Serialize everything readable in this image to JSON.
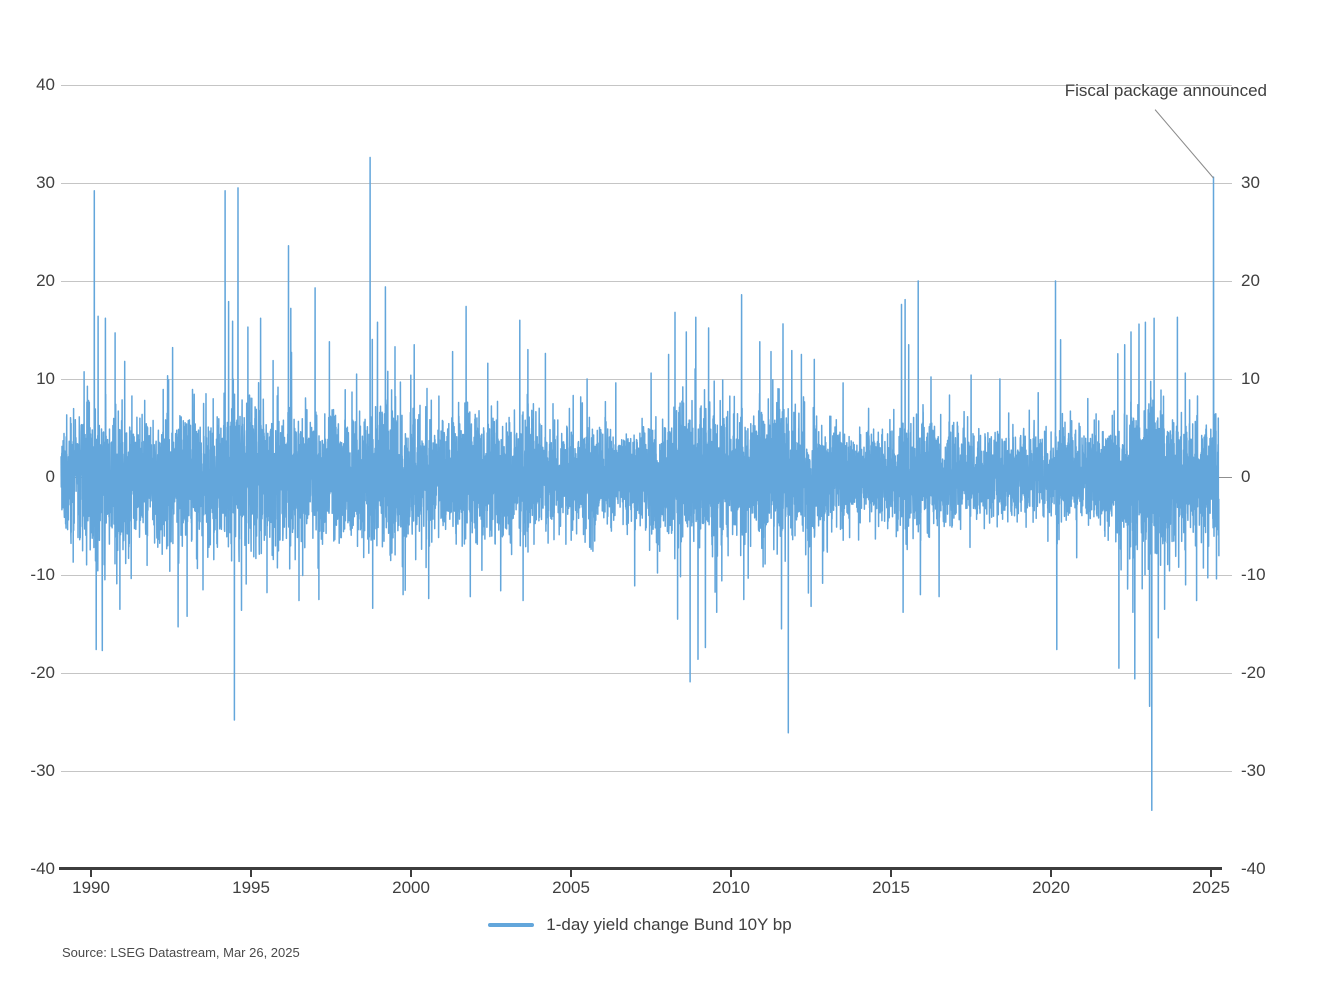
{
  "page": {
    "background": "#ffffff"
  },
  "colors": {
    "series": "#63a6db",
    "gridline": "#c5c5c5",
    "zero_line": "#8f8f8f",
    "axis": "#3d3d3d",
    "text": "#3f3f3f",
    "leader_line": "#8a8a8a",
    "source_text": "#4a4a4a"
  },
  "chart_data": {
    "type": "line",
    "title": "",
    "xlabel": "",
    "ylabel": "",
    "x_range": [
      1989.06,
      2025.25
    ],
    "ylim": [
      -40,
      40
    ],
    "x_ticks": [
      "1990",
      "1995",
      "2000",
      "2005",
      "2010",
      "2015",
      "2020",
      "2025"
    ],
    "x_tick_years": [
      1990,
      1995,
      2000,
      2005,
      2010,
      2015,
      2020,
      2025
    ],
    "y_ticks_left": [
      40,
      30,
      20,
      10,
      0,
      -10,
      -20,
      -30,
      -40
    ],
    "y_ticks_right": [
      30,
      20,
      10,
      0,
      -10,
      -20,
      -30,
      -40
    ],
    "grid": "horizontal gridlines on",
    "legend_position": "bottom-center",
    "series": [
      {
        "name": "1-day yield change Bund 10Y bp",
        "color": "#63a6db",
        "sampling": "daily (weekdays)",
        "points_per_year": 261
      }
    ],
    "annotation": {
      "text": "Fiscal package announced",
      "x": 2025.08,
      "y": 30.6
    },
    "generator": {
      "seed": 20250326,
      "tail_prob": 0.012,
      "tail_scale": [
        1.6,
        2.5
      ],
      "clip_sigma": 4.6
    },
    "volatility_envelope": [
      [
        1989.06,
        2.6
      ],
      [
        1989.9,
        3.8
      ],
      [
        1990.5,
        3.9
      ],
      [
        1991.3,
        3.0
      ],
      [
        1992.4,
        3.3
      ],
      [
        1993.1,
        3.1
      ],
      [
        1993.9,
        3.4
      ],
      [
        1994.5,
        4.0
      ],
      [
        1995.2,
        3.5
      ],
      [
        1996.3,
        3.3
      ],
      [
        1997.3,
        3.0
      ],
      [
        1998.4,
        3.2
      ],
      [
        1999.1,
        3.4
      ],
      [
        2000.5,
        3.1
      ],
      [
        2002.0,
        3.0
      ],
      [
        2003.5,
        3.1
      ],
      [
        2004.5,
        2.7
      ],
      [
        2005.5,
        2.4
      ],
      [
        2006.5,
        2.3
      ],
      [
        2007.5,
        2.6
      ],
      [
        2008.7,
        3.7
      ],
      [
        2009.4,
        3.5
      ],
      [
        2010.3,
        3.1
      ],
      [
        2011.1,
        3.2
      ],
      [
        2011.9,
        3.5
      ],
      [
        2012.6,
        3.1
      ],
      [
        2013.5,
        2.5
      ],
      [
        2014.4,
        1.9
      ],
      [
        2015.1,
        2.5
      ],
      [
        2015.6,
        3.0
      ],
      [
        2016.3,
        2.6
      ],
      [
        2017.2,
        2.3
      ],
      [
        2018.2,
        2.2
      ],
      [
        2019.2,
        2.0
      ],
      [
        2020.0,
        2.2
      ],
      [
        2020.25,
        2.9
      ],
      [
        2021.0,
        2.1
      ],
      [
        2021.7,
        2.4
      ],
      [
        2022.2,
        3.5
      ],
      [
        2022.7,
        4.4
      ],
      [
        2023.2,
        4.6
      ],
      [
        2023.7,
        3.8
      ],
      [
        2024.1,
        3.1
      ],
      [
        2024.7,
        2.8
      ],
      [
        2025.25,
        2.9
      ]
    ],
    "notable_points": [
      [
        1990.1,
        29.2
      ],
      [
        1990.16,
        -17.6
      ],
      [
        1990.22,
        16.4
      ],
      [
        1990.35,
        -17.7
      ],
      [
        1990.45,
        16.2
      ],
      [
        1990.75,
        14.7
      ],
      [
        1990.9,
        -13.5
      ],
      [
        1991.05,
        11.8
      ],
      [
        1992.55,
        13.2
      ],
      [
        1992.72,
        -15.3
      ],
      [
        1993.0,
        -14.2
      ],
      [
        1993.5,
        -11.5
      ],
      [
        1994.19,
        29.2
      ],
      [
        1994.3,
        17.9
      ],
      [
        1994.42,
        15.9
      ],
      [
        1994.48,
        -24.8
      ],
      [
        1994.59,
        29.5
      ],
      [
        1994.7,
        -13.6
      ],
      [
        1994.9,
        15.3
      ],
      [
        1995.3,
        16.2
      ],
      [
        1995.5,
        -11.8
      ],
      [
        1996.17,
        23.6
      ],
      [
        1996.24,
        17.2
      ],
      [
        1996.5,
        -12.6
      ],
      [
        1997.0,
        19.3
      ],
      [
        1997.12,
        -12.5
      ],
      [
        1997.45,
        13.8
      ],
      [
        1998.3,
        10.5
      ],
      [
        1998.72,
        32.6
      ],
      [
        1998.8,
        -13.4
      ],
      [
        1998.95,
        15.8
      ],
      [
        1999.2,
        19.4
      ],
      [
        1999.5,
        13.3
      ],
      [
        1999.75,
        -12.0
      ],
      [
        2000.1,
        13.5
      ],
      [
        2000.55,
        -12.4
      ],
      [
        2001.3,
        12.8
      ],
      [
        2001.72,
        17.4
      ],
      [
        2001.85,
        -12.2
      ],
      [
        2002.4,
        11.6
      ],
      [
        2002.8,
        -11.6
      ],
      [
        2003.4,
        16.0
      ],
      [
        2003.5,
        -12.6
      ],
      [
        2003.65,
        13.0
      ],
      [
        2004.2,
        12.6
      ],
      [
        2005.5,
        10.0
      ],
      [
        2006.4,
        9.6
      ],
      [
        2007.5,
        10.6
      ],
      [
        2007.7,
        -9.8
      ],
      [
        2008.05,
        12.5
      ],
      [
        2008.25,
        16.8
      ],
      [
        2008.33,
        -14.5
      ],
      [
        2008.6,
        14.8
      ],
      [
        2008.72,
        -20.9
      ],
      [
        2008.9,
        16.3
      ],
      [
        2008.97,
        -18.6
      ],
      [
        2009.2,
        -17.4
      ],
      [
        2009.3,
        15.2
      ],
      [
        2009.55,
        -13.8
      ],
      [
        2010.33,
        18.6
      ],
      [
        2010.4,
        -12.5
      ],
      [
        2010.9,
        13.8
      ],
      [
        2011.25,
        12.8
      ],
      [
        2011.58,
        -15.5
      ],
      [
        2011.79,
        -26.1
      ],
      [
        2011.9,
        12.9
      ],
      [
        2012.2,
        12.5
      ],
      [
        2012.5,
        -13.2
      ],
      [
        2012.6,
        12.0
      ],
      [
        2013.5,
        9.6
      ],
      [
        2014.3,
        7.0
      ],
      [
        2015.33,
        17.6
      ],
      [
        2015.38,
        -13.8
      ],
      [
        2015.44,
        18.1
      ],
      [
        2015.55,
        13.5
      ],
      [
        2015.85,
        20.0
      ],
      [
        2015.92,
        -12.0
      ],
      [
        2016.25,
        10.2
      ],
      [
        2016.5,
        -12.2
      ],
      [
        2017.5,
        10.4
      ],
      [
        2018.4,
        10.0
      ],
      [
        2019.6,
        8.6
      ],
      [
        2020.14,
        20.0
      ],
      [
        2020.18,
        -17.6
      ],
      [
        2020.3,
        14.0
      ],
      [
        2021.15,
        8.0
      ],
      [
        2022.12,
        -19.5
      ],
      [
        2022.3,
        13.5
      ],
      [
        2022.5,
        14.8
      ],
      [
        2022.62,
        -20.6
      ],
      [
        2022.75,
        15.6
      ],
      [
        2022.95,
        15.8
      ],
      [
        2023.08,
        -23.4
      ],
      [
        2023.15,
        -34.0
      ],
      [
        2023.22,
        16.2
      ],
      [
        2023.35,
        -16.4
      ],
      [
        2023.55,
        -13.5
      ],
      [
        2023.95,
        16.3
      ],
      [
        2024.2,
        10.6
      ],
      [
        2024.55,
        -12.6
      ],
      [
        2024.9,
        -10.3
      ],
      [
        2025.08,
        30.6
      ],
      [
        2025.17,
        -10.4
      ]
    ]
  },
  "legend": {
    "label": "1-day yield change Bund 10Y bp",
    "swatch_color": "#63a6db"
  },
  "footer": {
    "source": "Source: LSEG Datastream, Mar 26, 2025"
  }
}
